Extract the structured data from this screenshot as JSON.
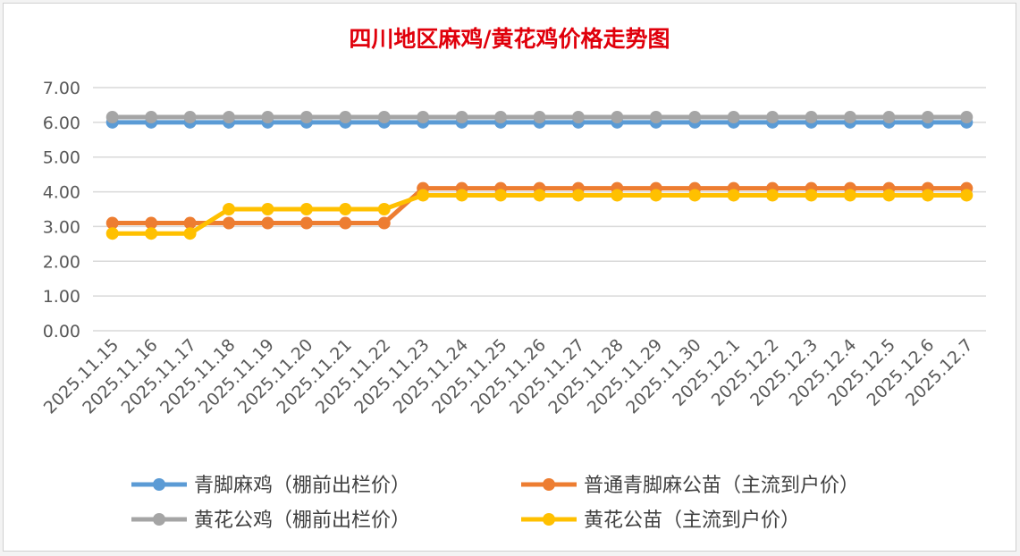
{
  "chart_data": {
    "type": "line",
    "title": "四川地区麻鸡/黄花鸡价格走势图",
    "title_color": "#e0000b",
    "xlabel": "",
    "ylabel": "",
    "ylim": [
      0,
      7
    ],
    "yticks": [
      "0.00",
      "1.00",
      "2.00",
      "3.00",
      "4.00",
      "5.00",
      "6.00",
      "7.00"
    ],
    "grid": true,
    "legend_position": "bottom",
    "categories": [
      "2025.11.15",
      "2025.11.16",
      "2025.11.17",
      "2025.11.18",
      "2025.11.19",
      "2025.11.20",
      "2025.11.21",
      "2025.11.22",
      "2025.11.23",
      "2025.11.24",
      "2025.11.25",
      "2025.11.26",
      "2025.11.27",
      "2025.11.28",
      "2025.11.29",
      "2025.11.30",
      "2025.12.1",
      "2025.12.2",
      "2025.12.3",
      "2025.12.4",
      "2025.12.5",
      "2025.12.6",
      "2025.12.7"
    ],
    "series": [
      {
        "name": "青脚麻鸡（棚前出栏价）",
        "color": "#5b9bd5",
        "values": [
          6.0,
          6.0,
          6.0,
          6.0,
          6.0,
          6.0,
          6.0,
          6.0,
          6.0,
          6.0,
          6.0,
          6.0,
          6.0,
          6.0,
          6.0,
          6.0,
          6.0,
          6.0,
          6.0,
          6.0,
          6.0,
          6.0,
          6.0
        ]
      },
      {
        "name": "普通青脚麻公苗（主流到户价）",
        "color": "#ed7d31",
        "values": [
          3.1,
          3.1,
          3.1,
          3.1,
          3.1,
          3.1,
          3.1,
          3.1,
          4.1,
          4.1,
          4.1,
          4.1,
          4.1,
          4.1,
          4.1,
          4.1,
          4.1,
          4.1,
          4.1,
          4.1,
          4.1,
          4.1,
          4.1
        ]
      },
      {
        "name": "黄花公鸡（棚前出栏价）",
        "color": "#a5a5a5",
        "values": [
          6.15,
          6.15,
          6.15,
          6.15,
          6.15,
          6.15,
          6.15,
          6.15,
          6.15,
          6.15,
          6.15,
          6.15,
          6.15,
          6.15,
          6.15,
          6.15,
          6.15,
          6.15,
          6.15,
          6.15,
          6.15,
          6.15,
          6.15
        ]
      },
      {
        "name": "黄花公苗（主流到户价）",
        "color": "#ffc000",
        "values": [
          2.8,
          2.8,
          2.8,
          3.5,
          3.5,
          3.5,
          3.5,
          3.5,
          3.9,
          3.9,
          3.9,
          3.9,
          3.9,
          3.9,
          3.9,
          3.9,
          3.9,
          3.9,
          3.9,
          3.9,
          3.9,
          3.9,
          3.9
        ]
      }
    ]
  }
}
